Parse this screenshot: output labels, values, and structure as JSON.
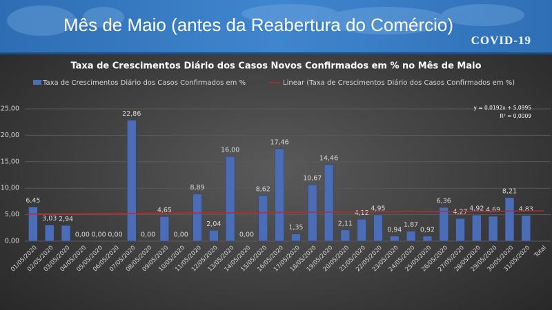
{
  "header": {
    "title": "Mês de Maio (antes da Reabertura do Comércio)",
    "badge": "COVID-19"
  },
  "chart_data": {
    "type": "bar",
    "title": "Taxa de Crescimentos Diário dos Casos Novos Confirmados em % no Mês de Maio",
    "categories": [
      "01/05/2020",
      "02/05/2020",
      "03/05/2020",
      "04/05/2020",
      "05/05/2020",
      "06/05/2020",
      "07/05/2020",
      "08/05/2020",
      "09/05/2020",
      "10/05/2020",
      "11/05/2020",
      "12/05/2020",
      "13/05/2020",
      "14/05/2020",
      "15/05/2020",
      "16/05/2020",
      "17/05/2020",
      "18/05/2020",
      "19/05/2020",
      "20/05/2020",
      "21/05/2020",
      "22/05/2020",
      "23/05/2020",
      "24/05/2020",
      "25/05/2020",
      "26/05/2020",
      "27/05/2020",
      "28/05/2020",
      "29/05/2020",
      "30/05/2020",
      "31/05/2020",
      "Total"
    ],
    "series": [
      {
        "name": "Taxa de Crescimentos Diário dos Casos Confirmados em %",
        "color": "#4a6db5",
        "values": [
          6.45,
          3.03,
          2.94,
          0,
          0,
          0,
          22.86,
          0,
          4.65,
          0,
          8.89,
          2.04,
          16.0,
          0,
          8.62,
          17.46,
          1.35,
          10.67,
          14.46,
          2.11,
          4.12,
          4.95,
          0.94,
          1.87,
          0.92,
          6.36,
          4.27,
          4.92,
          4.69,
          8.21,
          4.83,
          null
        ],
        "value_labels": [
          "6,45",
          "3,03",
          "2,94",
          "0,00",
          "0,00",
          "0,00",
          "22,86",
          "0,00",
          "4,65",
          "0,00",
          "8,89",
          "2,04",
          "16,00",
          "0,00",
          "8,62",
          "17,46",
          "1,35",
          "10,67",
          "14,46",
          "2,11",
          "4,12",
          "4,95",
          "0,94",
          "1,87",
          "0,92",
          "6,36",
          "4,27",
          "4,92",
          "4,69",
          "8,21",
          "4,83",
          null
        ]
      }
    ],
    "trendline": {
      "name": "Linear (Taxa de Crescimentos Diário dos Casos Confirmados em %)",
      "color": "#c0282d",
      "start": 5.12,
      "end": 5.72
    },
    "annotations": [
      "y = 0,0192x + 5,0995",
      "R² = 0,0009"
    ],
    "ylim": [
      0,
      25
    ],
    "yticks": [
      {
        "value": 0,
        "label": "0,00"
      },
      {
        "value": 5,
        "label": "5,00"
      },
      {
        "value": 10,
        "label": "10,00"
      },
      {
        "value": 15,
        "label": "15,00"
      },
      {
        "value": 20,
        "label": "20,00"
      },
      {
        "value": 25,
        "label": "25,00"
      }
    ],
    "grid": true,
    "legend": "top"
  }
}
